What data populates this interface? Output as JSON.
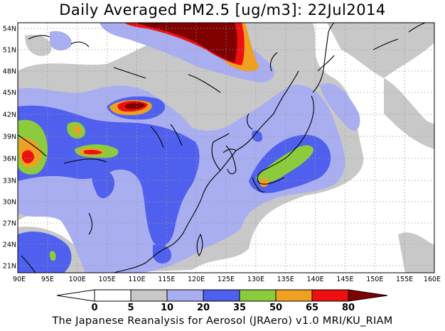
{
  "title": "Daily Averaged PM2.5 [ug/m3]: 22Jul2014",
  "footer": "The Japanese Reanalysis for Aerosol (JRAero) v1.0 MRI/KU_RIAM",
  "axes": {
    "lon_ticks": [
      "90E",
      "95E",
      "100E",
      "105E",
      "110E",
      "115E",
      "120E",
      "125E",
      "130E",
      "135E",
      "140E",
      "145E",
      "150E",
      "155E",
      "160E"
    ],
    "lat_ticks": [
      "54N",
      "51N",
      "48N",
      "45N",
      "42N",
      "39N",
      "36N",
      "33N",
      "30N",
      "27N",
      "24N",
      "21N"
    ],
    "lon_range": [
      90,
      160
    ],
    "lat_range": [
      19.5,
      55
    ]
  },
  "colorbar": {
    "levels": [
      "0",
      "5",
      "10",
      "20",
      "35",
      "50",
      "65",
      "80"
    ],
    "colors": [
      "#ffffff",
      "#c8c8c8",
      "#a8aef0",
      "#5060ee",
      "#8ccc3c",
      "#f0a020",
      "#ee1010",
      "#800000"
    ]
  }
}
